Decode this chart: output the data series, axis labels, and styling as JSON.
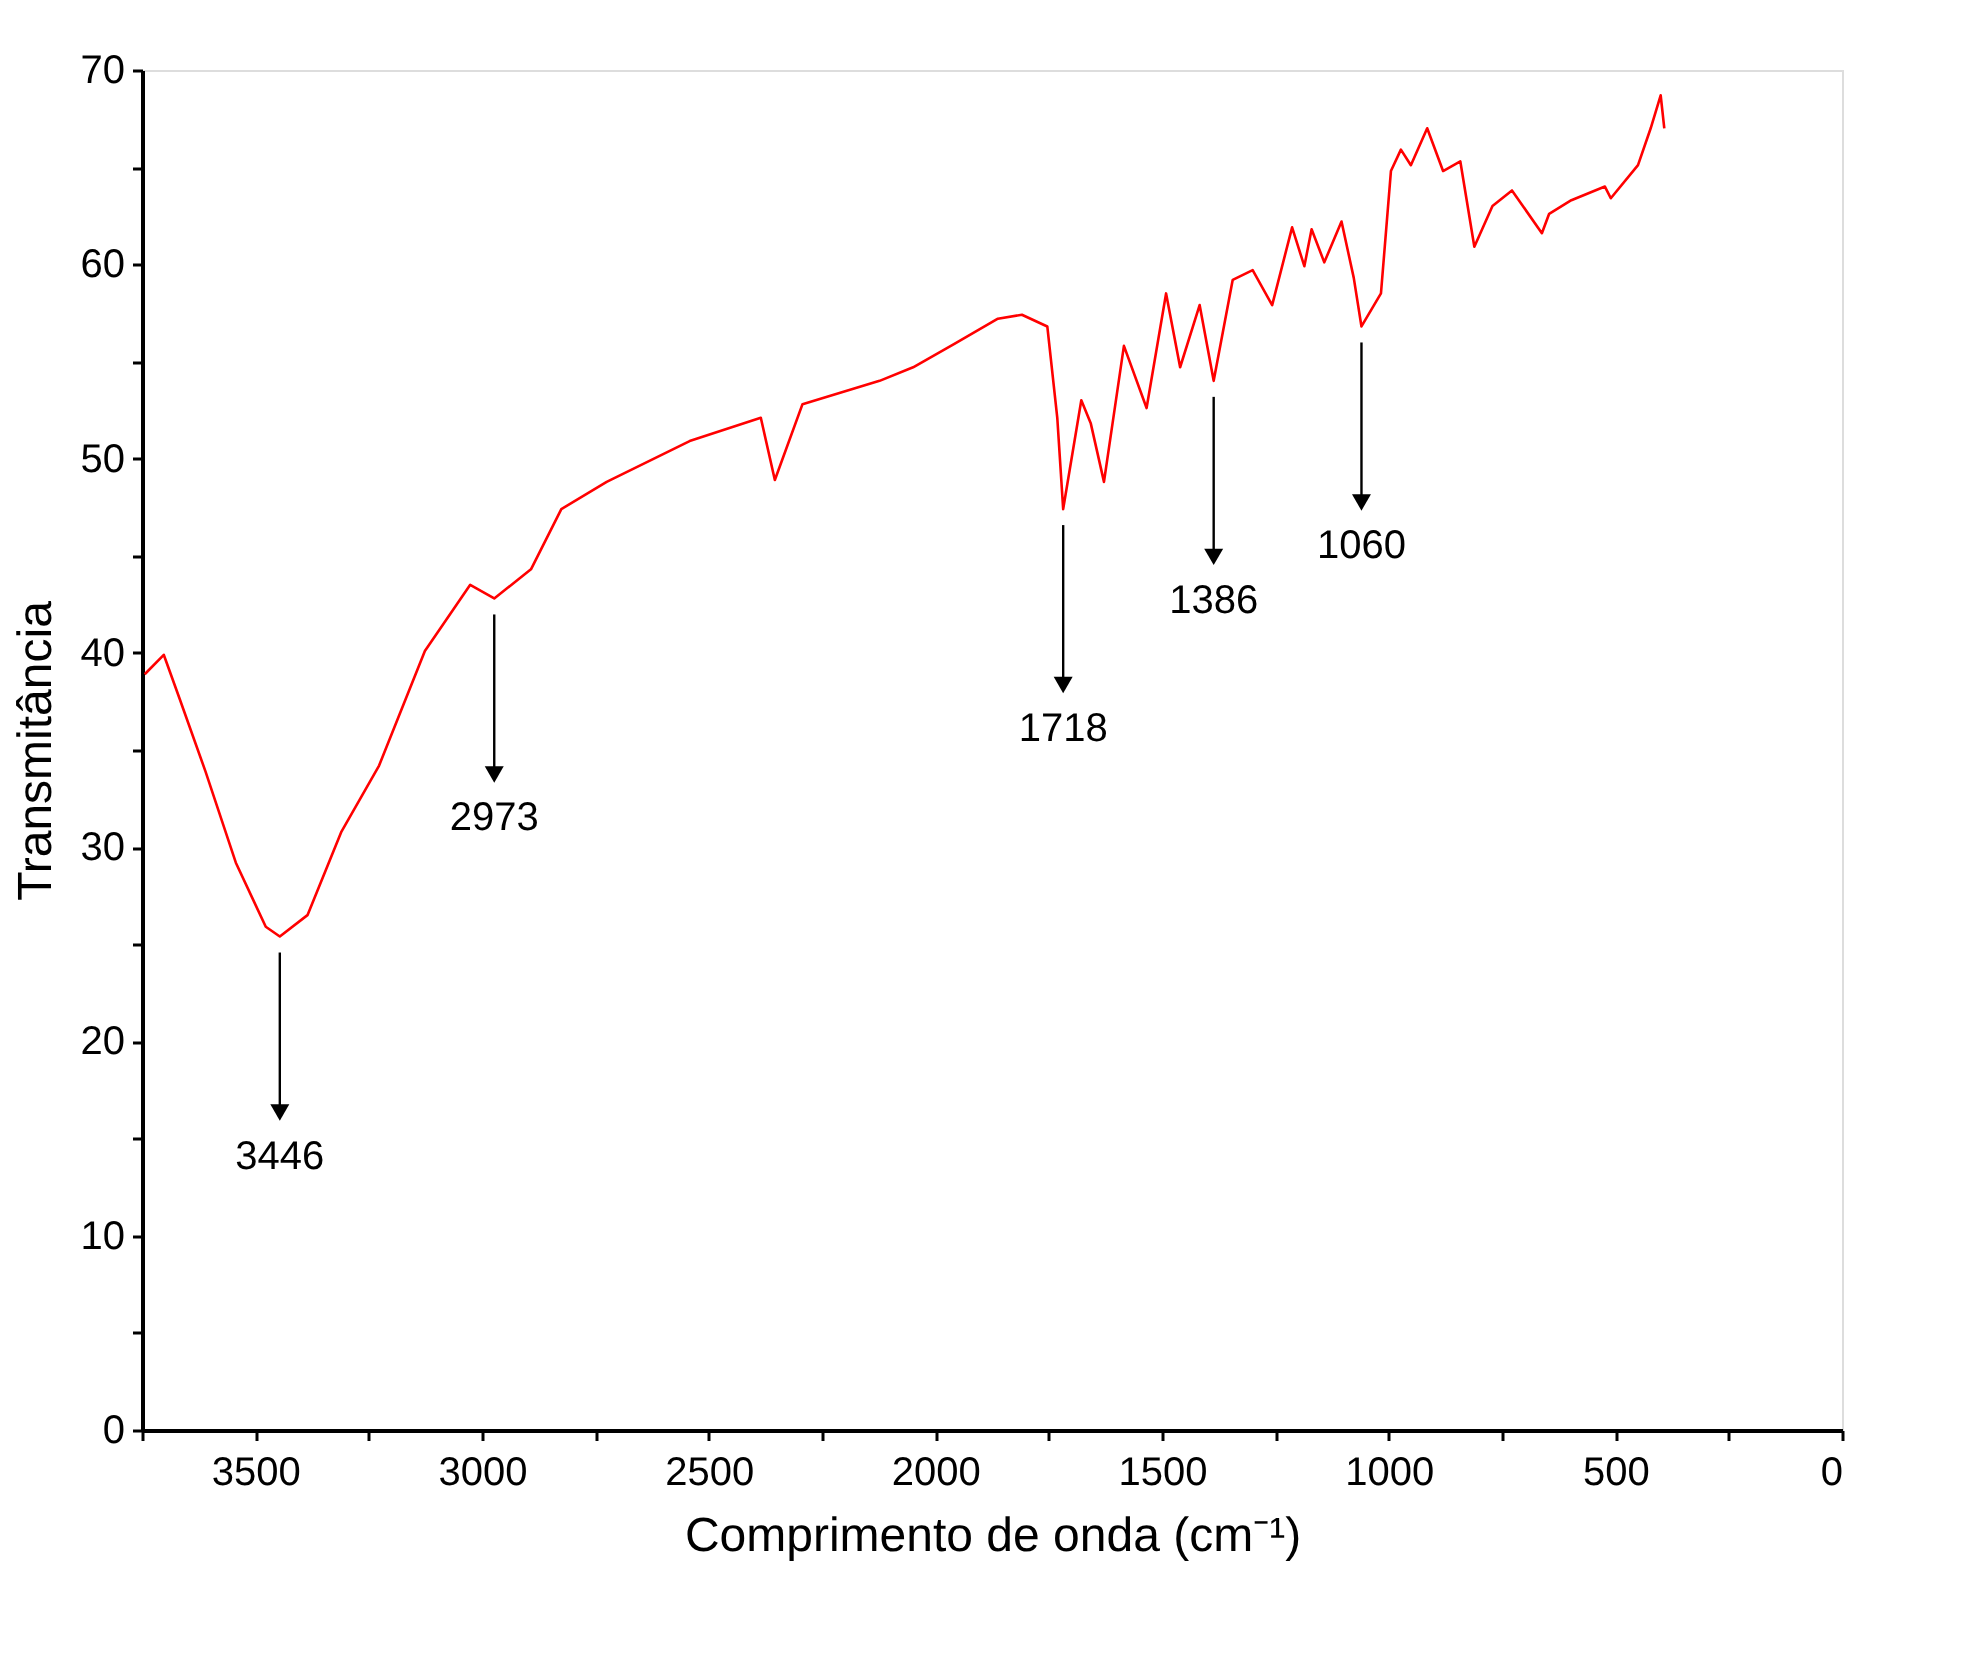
{
  "chart_data": {
    "type": "line",
    "xlabel": "Comprimento de onda (cm⁻¹)",
    "ylabel": "Transmitância",
    "xlim": [
      3750,
      0
    ],
    "ylim": [
      0,
      70
    ],
    "xticks": [
      {
        "value": 3750,
        "label": null
      },
      3500,
      {
        "value": 3250,
        "label": null
      },
      3000,
      {
        "value": 2750,
        "label": null
      },
      2500,
      {
        "value": 2250,
        "label": null
      },
      2000,
      {
        "value": 1750,
        "label": null
      },
      1500,
      {
        "value": 1250,
        "label": null
      },
      1000,
      {
        "value": 750,
        "label": null
      },
      500,
      {
        "value": 250,
        "label": null
      },
      0
    ],
    "yticks": [
      0,
      {
        "value": 5,
        "label": null
      },
      10,
      {
        "value": 15,
        "label": null
      },
      20,
      {
        "value": 25,
        "label": null
      },
      30,
      {
        "value": 35,
        "label": null
      },
      40,
      {
        "value": 45,
        "label": null
      },
      50,
      {
        "value": 55,
        "label": null
      },
      60,
      {
        "value": 65,
        "label": null
      },
      70
    ],
    "grid": false,
    "marker": "none",
    "line_style": "solid",
    "x": [
      3744,
      3702,
      3668,
      3610,
      3543,
      3477,
      3446,
      3385,
      3310,
      3227,
      3126,
      3026,
      2973,
      2892,
      2825,
      2725,
      2542,
      2385,
      2354,
      2293,
      2123,
      2049,
      1958,
      1862,
      1809,
      1753,
      1731,
      1718,
      1678,
      1657,
      1628,
      1584,
      1534,
      1491,
      1460,
      1417,
      1386,
      1344,
      1300,
      1257,
      1213,
      1186,
      1170,
      1142,
      1104,
      1077,
      1060,
      1017,
      995,
      973,
      951,
      915,
      880,
      842,
      811,
      771,
      728,
      662,
      646,
      597,
      523,
      510,
      450,
      422,
      400,
      392
    ],
    "series": [
      {
        "color": "#ff0000",
        "values": [
          38.9,
          39.9,
          37.7,
          33.9,
          29.2,
          25.9,
          25.4,
          26.5,
          30.8,
          34.2,
          40.1,
          43.5,
          42.8,
          44.3,
          47.4,
          48.8,
          50.9,
          52.1,
          48.9,
          52.8,
          54.0,
          54.7,
          55.9,
          57.2,
          57.4,
          56.8,
          52.1,
          47.4,
          53.0,
          51.8,
          48.8,
          55.8,
          52.6,
          58.5,
          54.7,
          57.9,
          54.0,
          59.2,
          59.7,
          57.9,
          61.9,
          59.9,
          61.8,
          60.1,
          62.2,
          59.3,
          56.8,
          58.5,
          64.8,
          65.9,
          65.1,
          67.0,
          64.8,
          65.3,
          60.9,
          63.0,
          63.8,
          61.6,
          62.6,
          63.3,
          64.0,
          63.4,
          65.1,
          67.0,
          68.7,
          67.0
        ]
      }
    ],
    "annotations": [
      {
        "text": "3446",
        "x": 3446,
        "y": 25.4
      },
      {
        "text": "2973",
        "x": 2973,
        "y": 42.8
      },
      {
        "text": "1718",
        "x": 1718,
        "y": 47.4
      },
      {
        "text": "1386",
        "x": 1386,
        "y": 54.0
      },
      {
        "text": "1060",
        "x": 1060,
        "y": 56.8
      }
    ]
  }
}
